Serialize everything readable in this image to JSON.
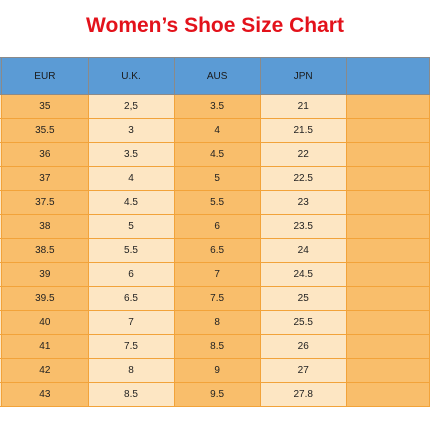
{
  "title": "Women’s Shoe Size Chart",
  "headers": [
    "",
    "EUR",
    "U.K.",
    "AUS",
    "JPN",
    ""
  ],
  "rows": [
    [
      "",
      "35",
      "2,5",
      "3.5",
      "21",
      ""
    ],
    [
      "",
      "35.5",
      "3",
      "4",
      "21.5",
      ""
    ],
    [
      "",
      "36",
      "3.5",
      "4.5",
      "22",
      ""
    ],
    [
      "",
      "37",
      "4",
      "5",
      "22.5",
      ""
    ],
    [
      "",
      "37.5",
      "4.5",
      "5.5",
      "23",
      ""
    ],
    [
      "",
      "38",
      "5",
      "6",
      "23.5",
      ""
    ],
    [
      "",
      "38.5",
      "5.5",
      "6.5",
      "24",
      ""
    ],
    [
      "",
      "39",
      "6",
      "7",
      "24.5",
      ""
    ],
    [
      "",
      "39.5",
      "6.5",
      "7.5",
      "25",
      ""
    ],
    [
      "",
      "40",
      "7",
      "8",
      "25.5",
      ""
    ],
    [
      "",
      "41",
      "7.5",
      "8.5",
      "26",
      ""
    ],
    [
      "",
      "42",
      "8",
      "9",
      "27",
      ""
    ],
    [
      "",
      "43",
      "8.5",
      "9.5",
      "27.8",
      ""
    ]
  ],
  "colors": {
    "title": "#e3121b",
    "header": "#5b9bd5",
    "orange_column": "#f9be6b",
    "light_column": "#fde6c3",
    "grid": "#f2a33a"
  }
}
